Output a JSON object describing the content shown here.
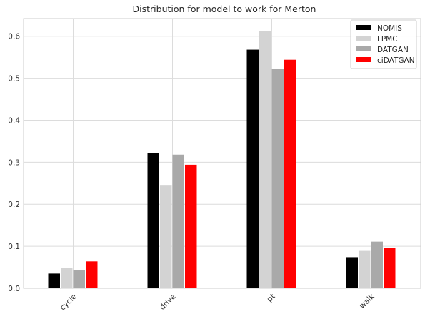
{
  "chart_data": {
    "type": "bar",
    "title": "Distribution for model to work for Merton",
    "xlabel": "",
    "ylabel": "",
    "categories": [
      "cycle",
      "drive",
      "pt",
      "walk"
    ],
    "series": [
      {
        "name": "NOMIS",
        "color": "#000000",
        "values": [
          0.035,
          0.321,
          0.568,
          0.074
        ]
      },
      {
        "name": "LPMC",
        "color": "#d3d3d3",
        "values": [
          0.049,
          0.246,
          0.613,
          0.089
        ]
      },
      {
        "name": "DATGAN",
        "color": "#a9a9a9",
        "values": [
          0.044,
          0.318,
          0.522,
          0.111
        ]
      },
      {
        "name": "ciDATGAN",
        "color": "#ff0000",
        "values": [
          0.064,
          0.294,
          0.544,
          0.096
        ]
      }
    ],
    "ylim": [
      0,
      0.642
    ],
    "yticks": [
      "0.0",
      "0.1",
      "0.2",
      "0.3",
      "0.4",
      "0.5",
      "0.6"
    ],
    "grid": true,
    "legend_position": "top-right"
  }
}
